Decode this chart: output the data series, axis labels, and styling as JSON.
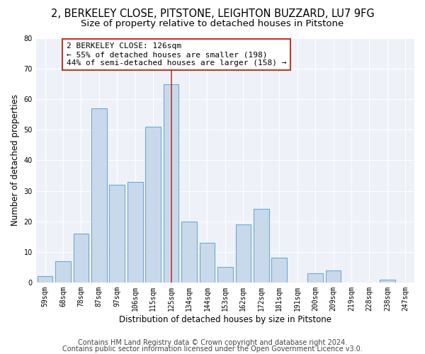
{
  "title_line1": "2, BERKELEY CLOSE, PITSTONE, LEIGHTON BUZZARD, LU7 9FG",
  "title_line2": "Size of property relative to detached houses in Pitstone",
  "xlabel": "Distribution of detached houses by size in Pitstone",
  "ylabel": "Number of detached properties",
  "categories": [
    "59sqm",
    "68sqm",
    "78sqm",
    "87sqm",
    "97sqm",
    "106sqm",
    "115sqm",
    "125sqm",
    "134sqm",
    "144sqm",
    "153sqm",
    "162sqm",
    "172sqm",
    "181sqm",
    "191sqm",
    "200sqm",
    "209sqm",
    "219sqm",
    "228sqm",
    "238sqm",
    "247sqm"
  ],
  "values": [
    2,
    7,
    16,
    57,
    32,
    33,
    51,
    65,
    20,
    13,
    5,
    19,
    24,
    8,
    0,
    3,
    4,
    0,
    0,
    1,
    0
  ],
  "bar_color": "#c9d9ec",
  "bar_edge_color": "#6fa8d4",
  "annotation_text": "2 BERKELEY CLOSE: 126sqm\n← 55% of detached houses are smaller (198)\n44% of semi-detached houses are larger (158) →",
  "vline_x_index": 7,
  "vline_color": "#c0392b",
  "annotation_box_edge_color": "#c0392b",
  "ylim": [
    0,
    80
  ],
  "yticks": [
    0,
    10,
    20,
    30,
    40,
    50,
    60,
    70,
    80
  ],
  "footnote1": "Contains HM Land Registry data © Crown copyright and database right 2024.",
  "footnote2": "Contains public sector information licensed under the Open Government Licence v3.0.",
  "bg_color": "#eef2f8",
  "title1_fontsize": 10.5,
  "title2_fontsize": 9.5,
  "annotation_fontsize": 8,
  "axis_label_fontsize": 8.5,
  "tick_fontsize": 7,
  "footnote_fontsize": 7,
  "bar_width": 0.85
}
